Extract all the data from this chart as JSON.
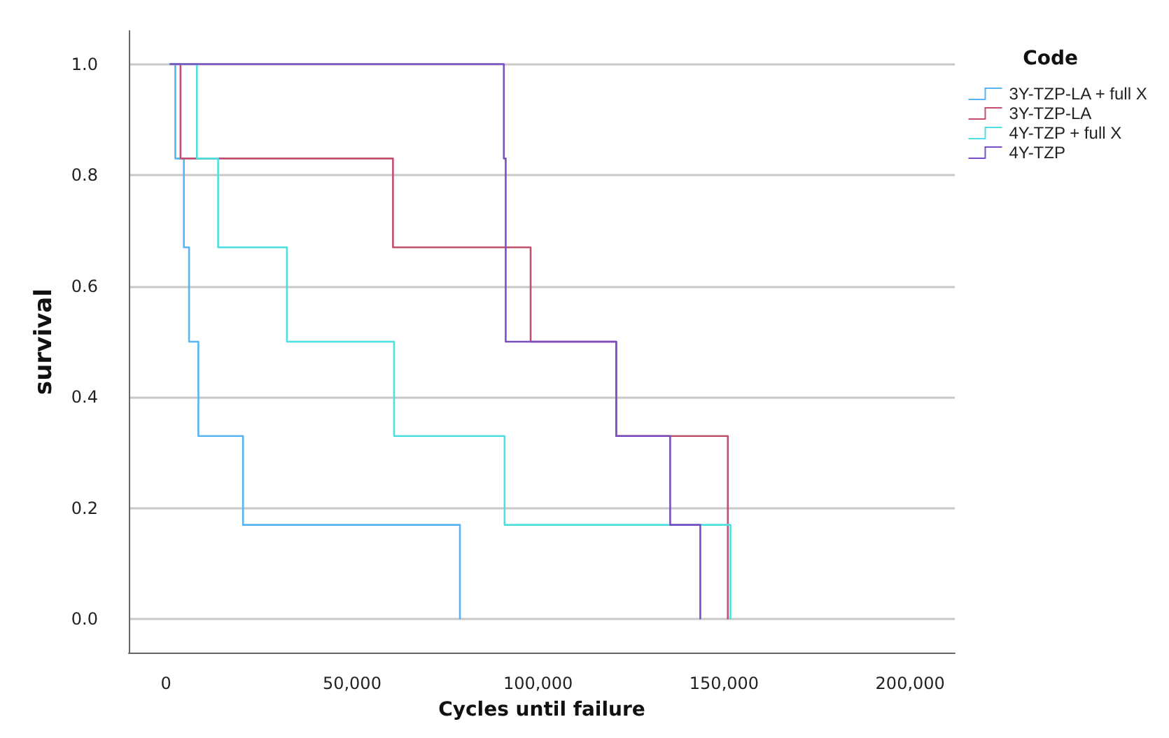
{
  "chart_data": {
    "type": "step",
    "xlabel": "Cycles until failure",
    "ylabel": "survival",
    "legend_title": "Code",
    "legend": "top right",
    "grid": "y",
    "xlim": [
      -10000,
      212000
    ],
    "ylim": [
      -0.06,
      1.06
    ],
    "xticks": [
      0,
      {
        "value": 50000,
        "label": "50,000"
      },
      {
        "value": 100000,
        "label": "100,000"
      },
      {
        "value": 150000,
        "label": "150,000"
      },
      {
        "value": 200000,
        "label": "200,000"
      }
    ],
    "yticks": [
      {
        "value": 0,
        "label": "0.0"
      },
      {
        "value": 0.2,
        "label": "0.2"
      },
      {
        "value": 0.4,
        "label": "0.4"
      },
      {
        "value": 0.6,
        "label": "0.6"
      },
      {
        "value": 0.8,
        "label": "0.8"
      },
      {
        "value": 1,
        "label": "1.0"
      }
    ],
    "series": [
      {
        "name": "3Y-TZP-LA + full X",
        "color": "#5ab4f0",
        "x": [
          1000,
          2500,
          4800,
          6200,
          8700,
          20700,
          79000
        ],
        "values": [
          1,
          0.83,
          0.67,
          0.5,
          0.33,
          0.17,
          0
        ]
      },
      {
        "name": "3Y-TZP-LA",
        "color": "#c0506e",
        "x": [
          1000,
          3900,
          61000,
          98000,
          121000,
          151000
        ],
        "values": [
          1,
          0.83,
          0.67,
          0.5,
          0.33,
          0
        ]
      },
      {
        "name": "4Y-TZP + full X",
        "color": "#4ee0e0",
        "x": [
          1000,
          8300,
          14000,
          32500,
          61300,
          91000,
          151700
        ],
        "values": [
          1,
          0.83,
          0.67,
          0.5,
          0.33,
          0.17,
          0
        ]
      },
      {
        "name": "4Y-TZP",
        "color": "#7b4fc4",
        "x": [
          1000,
          90800,
          91300,
          121000,
          135500,
          143600
        ],
        "values": [
          1,
          0.83,
          0.5,
          0.33,
          0.17,
          0
        ]
      }
    ]
  }
}
